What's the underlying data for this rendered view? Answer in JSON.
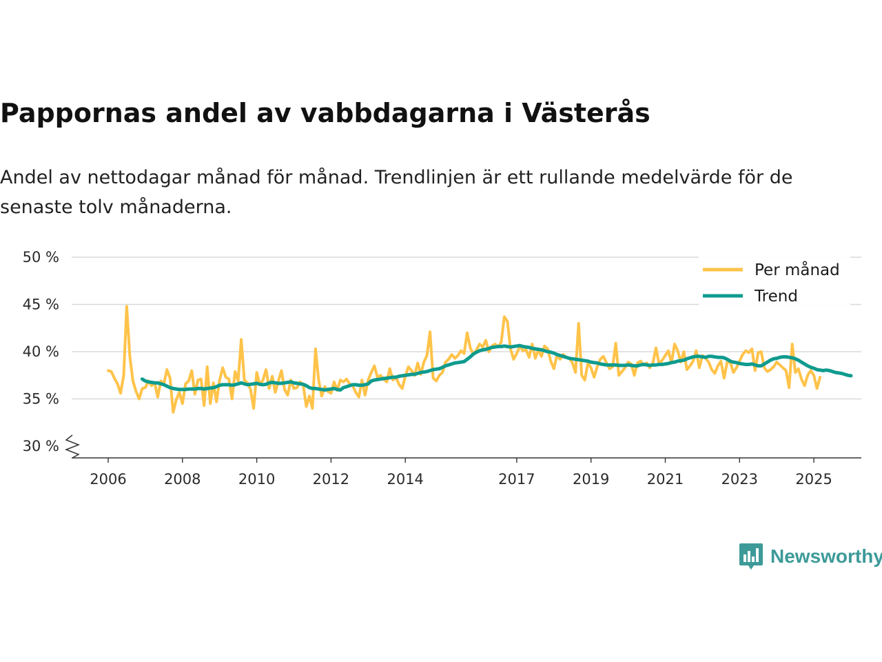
{
  "title": "Pappornas andel av vabbdagarna i Västerås",
  "subtitle": "Andel av nettodagar månad för månad. Trendlinjen är ett rullande medelvärde för de senaste tolv månaderna.",
  "brand": {
    "name": "Newsworthy",
    "icon": "newsworthy-logo-icon",
    "color": "#3d9a98"
  },
  "colors": {
    "monthly": "#ffc34a",
    "trend": "#0f9b8e",
    "grid": "#d9d9d9",
    "axis": "#333333"
  },
  "chart_data": {
    "type": "line",
    "title": "Pappornas andel av vabbdagarna i Västerås",
    "xlabel": "",
    "ylabel": "",
    "x_range": [
      2005.5,
      2025.95
    ],
    "ylim": [
      30,
      50
    ],
    "y_axis_break": true,
    "y_ticks": [
      30,
      35,
      40,
      45,
      50
    ],
    "y_tick_labels": [
      "30 %",
      "35 %",
      "40 %",
      "45 %",
      "50 %"
    ],
    "x_ticks": [
      2006,
      2008,
      2010,
      2012,
      2014,
      2017,
      2019,
      2021,
      2023,
      2025
    ],
    "x_tick_labels": [
      "2006",
      "2008",
      "2010",
      "2012",
      "2014",
      "2017",
      "2019",
      "2021",
      "2023",
      "2025"
    ],
    "grid": true,
    "legend_position": "top-right",
    "series": [
      {
        "name": "Per månad",
        "start": 2006.0,
        "step_months": 1,
        "values": [
          38.0,
          37.9,
          37.2,
          36.6,
          35.6,
          37.5,
          44.8,
          39.5,
          36.9,
          35.8,
          35.0,
          36.1,
          36.2,
          36.9,
          36.4,
          36.7,
          35.2,
          36.9,
          36.6,
          38.1,
          37.2,
          33.6,
          34.9,
          35.7,
          34.5,
          36.6,
          36.9,
          38.0,
          35.5,
          37.0,
          37.1,
          34.3,
          38.4,
          34.5,
          36.7,
          34.7,
          37.0,
          38.3,
          37.3,
          37.1,
          35.0,
          37.9,
          36.9,
          41.3,
          37.0,
          36.7,
          36.0,
          34.0,
          37.8,
          36.5,
          37.0,
          38.1,
          36.1,
          37.4,
          35.7,
          36.9,
          38.0,
          36.0,
          35.4,
          37.0,
          36.1,
          36.2,
          36.8,
          36.5,
          34.2,
          35.3,
          34.0,
          40.3,
          37.0,
          35.3,
          36.3,
          35.8,
          35.6,
          36.8,
          35.9,
          37.0,
          36.8,
          37.1,
          36.6,
          36.4,
          35.7,
          35.2,
          37.0,
          35.4,
          37.0,
          37.8,
          38.5,
          37.3,
          37.5,
          37.1,
          36.8,
          38.2,
          37.0,
          37.3,
          36.5,
          36.1,
          37.4,
          38.4,
          38.0,
          37.5,
          38.8,
          37.6,
          38.9,
          39.6,
          42.1,
          37.2,
          36.9,
          37.5,
          37.8,
          38.9,
          39.2,
          39.7,
          39.3,
          39.6,
          40.1,
          39.8,
          42.0,
          40.4,
          39.7,
          40.2,
          40.8,
          40.5,
          41.2,
          40.0,
          40.6,
          40.8,
          40.5,
          41.0,
          43.7,
          43.2,
          40.3,
          39.2,
          39.8,
          40.6,
          40.1,
          40.2,
          39.4,
          40.8,
          39.3,
          40.2,
          39.5,
          40.6,
          40.3,
          39.0,
          38.2,
          39.6,
          39.2,
          39.7,
          39.4,
          39.3,
          38.8,
          37.8,
          43.0,
          37.5,
          37.0,
          38.8,
          38.3,
          37.3,
          38.4,
          39.2,
          39.5,
          38.8,
          38.2,
          38.4,
          40.9,
          37.5,
          37.9,
          38.3,
          38.9,
          38.7,
          37.5,
          38.8,
          39.0,
          38.6,
          38.8,
          38.3,
          38.8,
          40.4,
          38.7,
          39.1,
          39.6,
          40.1,
          38.8,
          40.8,
          40.1,
          38.9,
          40.0,
          38.1,
          38.5,
          39.0,
          40.1,
          38.3,
          39.6,
          39.3,
          38.9,
          38.1,
          37.7,
          38.5,
          39.0,
          37.2,
          38.9,
          38.9,
          37.8,
          38.3,
          39.0,
          39.7,
          40.1,
          39.9,
          40.3,
          38.0,
          39.9,
          40.0,
          38.3,
          37.9,
          38.1,
          38.4,
          38.9,
          38.6,
          38.3,
          38.0,
          36.2,
          40.8,
          37.8,
          38.2,
          37.1,
          36.4,
          37.5,
          38.0,
          37.5,
          36.1,
          37.3
        ]
      },
      {
        "name": "Trend",
        "start": 2006.9167,
        "step_months": 1,
        "values": [
          37.1,
          36.9,
          36.8,
          36.75,
          36.7,
          36.7,
          36.6,
          36.5,
          36.35,
          36.2,
          36.1,
          36.05,
          36.0,
          36.0,
          36.0,
          36.05,
          36.05,
          36.05,
          36.1,
          36.1,
          36.05,
          36.1,
          36.15,
          36.2,
          36.3,
          36.45,
          36.5,
          36.5,
          36.5,
          36.45,
          36.5,
          36.6,
          36.7,
          36.6,
          36.5,
          36.55,
          36.6,
          36.65,
          36.55,
          36.5,
          36.55,
          36.7,
          36.75,
          36.7,
          36.65,
          36.65,
          36.7,
          36.75,
          36.8,
          36.7,
          36.65,
          36.6,
          36.55,
          36.4,
          36.2,
          36.1,
          36.1,
          36.05,
          36.0,
          35.95,
          36.0,
          36.05,
          36.1,
          36.0,
          35.95,
          36.2,
          36.3,
          36.4,
          36.5,
          36.5,
          36.45,
          36.45,
          36.5,
          36.6,
          36.9,
          37.0,
          37.05,
          37.1,
          37.15,
          37.2,
          37.25,
          37.3,
          37.3,
          37.4,
          37.45,
          37.5,
          37.55,
          37.6,
          37.6,
          37.7,
          37.8,
          37.85,
          37.9,
          38.0,
          38.1,
          38.15,
          38.2,
          38.35,
          38.5,
          38.6,
          38.7,
          38.8,
          38.85,
          38.9,
          38.95,
          39.2,
          39.45,
          39.75,
          39.95,
          40.1,
          40.2,
          40.25,
          40.35,
          40.45,
          40.5,
          40.55,
          40.55,
          40.6,
          40.55,
          40.5,
          40.55,
          40.6,
          40.65,
          40.55,
          40.5,
          40.45,
          40.35,
          40.3,
          40.25,
          40.2,
          40.1,
          40.0,
          39.95,
          39.85,
          39.7,
          39.6,
          39.5,
          39.4,
          39.3,
          39.25,
          39.2,
          39.15,
          39.1,
          39.05,
          39.0,
          38.9,
          38.85,
          38.8,
          38.7,
          38.65,
          38.6,
          38.6,
          38.6,
          38.6,
          38.55,
          38.55,
          38.55,
          38.6,
          38.55,
          38.5,
          38.5,
          38.6,
          38.65,
          38.6,
          38.55,
          38.6,
          38.6,
          38.65,
          38.65,
          38.7,
          38.75,
          38.85,
          38.9,
          39.0,
          39.05,
          39.1,
          39.25,
          39.35,
          39.45,
          39.5,
          39.5,
          39.45,
          39.4,
          39.5,
          39.5,
          39.45,
          39.4,
          39.4,
          39.35,
          39.2,
          39.0,
          38.9,
          38.85,
          38.75,
          38.7,
          38.65,
          38.65,
          38.7,
          38.6,
          38.5,
          38.5,
          38.7,
          38.9,
          39.1,
          39.25,
          39.3,
          39.4,
          39.45,
          39.45,
          39.4,
          39.35,
          39.25,
          39.1,
          38.9,
          38.7,
          38.5,
          38.35,
          38.25,
          38.1,
          38.05,
          38.0,
          38.05,
          38.0,
          37.9,
          37.8,
          37.75,
          37.7,
          37.6,
          37.5,
          37.45
        ]
      }
    ]
  }
}
